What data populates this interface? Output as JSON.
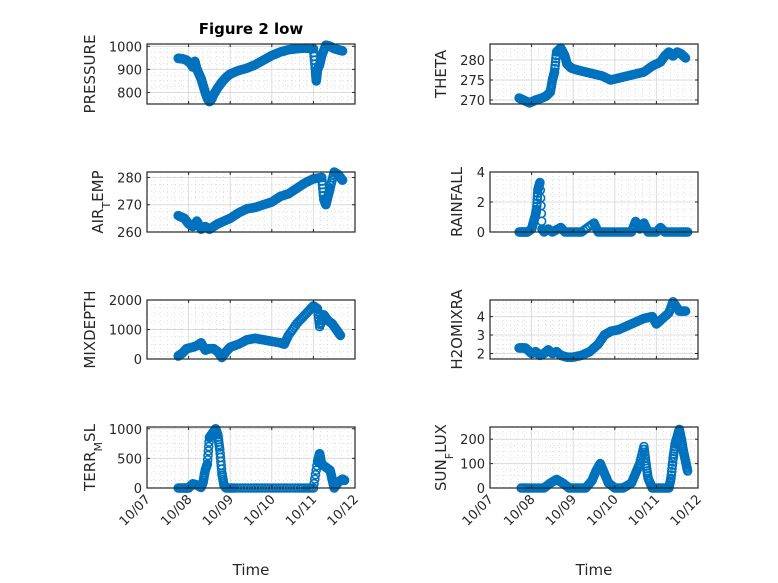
{
  "chart_data": [
    {
      "type": "scatter",
      "title": "Figure 2 low",
      "ylabel": "PRESSURE",
      "xlabel": "",
      "xlim": [
        0,
        5
      ],
      "ylim": [
        750,
        1010
      ],
      "yticks": [
        800,
        900,
        1000
      ],
      "xticks": [
        "10/07",
        "10/08",
        "10/09",
        "10/10",
        "10/11",
        "10/12"
      ],
      "show_xticklabels": false,
      "grid": true,
      "points": [
        [
          0.75,
          948
        ],
        [
          0.85,
          946
        ],
        [
          0.95,
          940
        ],
        [
          1.05,
          925
        ],
        [
          1.1,
          910
        ],
        [
          1.15,
          935
        ],
        [
          1.2,
          900
        ],
        [
          1.25,
          880
        ],
        [
          1.3,
          860
        ],
        [
          1.35,
          830
        ],
        [
          1.4,
          800
        ],
        [
          1.45,
          775
        ],
        [
          1.5,
          760
        ],
        [
          1.55,
          770
        ],
        [
          1.6,
          790
        ],
        [
          1.7,
          820
        ],
        [
          1.8,
          845
        ],
        [
          1.9,
          865
        ],
        [
          2.0,
          880
        ],
        [
          2.2,
          895
        ],
        [
          2.4,
          905
        ],
        [
          2.6,
          920
        ],
        [
          2.8,
          940
        ],
        [
          3.0,
          960
        ],
        [
          3.2,
          975
        ],
        [
          3.4,
          985
        ],
        [
          3.6,
          990
        ],
        [
          3.8,
          992
        ],
        [
          4.0,
          990
        ],
        [
          4.05,
          890
        ],
        [
          4.07,
          850
        ],
        [
          4.1,
          900
        ],
        [
          4.15,
          920
        ],
        [
          4.2,
          960
        ],
        [
          4.3,
          1005
        ],
        [
          4.4,
          1000
        ],
        [
          4.5,
          990
        ],
        [
          4.6,
          985
        ],
        [
          4.7,
          980
        ]
      ]
    },
    {
      "type": "scatter",
      "title": "",
      "ylabel": "THETA",
      "xlim": [
        0,
        5
      ],
      "ylim": [
        269,
        284
      ],
      "yticks": [
        270,
        275,
        280
      ],
      "xticks": [
        "10/07",
        "10/08",
        "10/09",
        "10/10",
        "10/11",
        "10/12"
      ],
      "show_xticklabels": false,
      "grid": true,
      "points": [
        [
          0.7,
          270.5
        ],
        [
          0.8,
          270
        ],
        [
          0.95,
          269.3
        ],
        [
          1.1,
          270
        ],
        [
          1.25,
          270.5
        ],
        [
          1.35,
          271
        ],
        [
          1.45,
          272
        ],
        [
          1.5,
          275
        ],
        [
          1.55,
          277
        ],
        [
          1.6,
          282
        ],
        [
          1.7,
          283
        ],
        [
          1.75,
          282
        ],
        [
          1.8,
          281
        ],
        [
          1.85,
          279
        ],
        [
          1.95,
          278
        ],
        [
          2.1,
          277.5
        ],
        [
          2.3,
          277
        ],
        [
          2.5,
          276.5
        ],
        [
          2.7,
          276
        ],
        [
          2.9,
          275
        ],
        [
          3.1,
          275.5
        ],
        [
          3.3,
          276
        ],
        [
          3.5,
          276.5
        ],
        [
          3.7,
          277
        ],
        [
          3.9,
          278.5
        ],
        [
          4.1,
          279.5
        ],
        [
          4.2,
          281
        ],
        [
          4.3,
          282
        ],
        [
          4.4,
          281
        ],
        [
          4.5,
          282
        ],
        [
          4.6,
          281.5
        ],
        [
          4.7,
          280.5
        ]
      ]
    },
    {
      "type": "scatter",
      "title": "",
      "ylabel": "AIR_TEMP",
      "xlim": [
        0,
        5
      ],
      "ylim": [
        260,
        282
      ],
      "yticks": [
        260,
        270,
        280
      ],
      "xticks": [
        "10/07",
        "10/08",
        "10/09",
        "10/10",
        "10/11",
        "10/12"
      ],
      "show_xticklabels": false,
      "grid": true,
      "points": [
        [
          0.75,
          266
        ],
        [
          0.9,
          265
        ],
        [
          1.0,
          263
        ],
        [
          1.1,
          262
        ],
        [
          1.2,
          264
        ],
        [
          1.3,
          261
        ],
        [
          1.4,
          262
        ],
        [
          1.5,
          261
        ],
        [
          1.6,
          262
        ],
        [
          1.7,
          263
        ],
        [
          1.85,
          264
        ],
        [
          2.0,
          265
        ],
        [
          2.2,
          267
        ],
        [
          2.4,
          268.5
        ],
        [
          2.6,
          269
        ],
        [
          2.8,
          270
        ],
        [
          3.0,
          271
        ],
        [
          3.2,
          273
        ],
        [
          3.4,
          274
        ],
        [
          3.6,
          276
        ],
        [
          3.8,
          278
        ],
        [
          4.0,
          279.5
        ],
        [
          4.2,
          280
        ],
        [
          4.25,
          272
        ],
        [
          4.3,
          270
        ],
        [
          4.35,
          273
        ],
        [
          4.4,
          276
        ],
        [
          4.5,
          282
        ],
        [
          4.6,
          281
        ],
        [
          4.7,
          279
        ]
      ]
    },
    {
      "type": "scatter",
      "title": "",
      "ylabel": "RAINFALL",
      "xlim": [
        0,
        5
      ],
      "ylim": [
        0,
        4
      ],
      "yticks": [
        0,
        2,
        4
      ],
      "xticks": [
        "10/07",
        "10/08",
        "10/09",
        "10/10",
        "10/11",
        "10/12"
      ],
      "show_xticklabels": false,
      "grid": true,
      "points": [
        [
          0.7,
          0
        ],
        [
          0.8,
          0
        ],
        [
          0.9,
          0
        ],
        [
          1.0,
          0.2
        ],
        [
          1.05,
          0.7
        ],
        [
          1.1,
          1.2
        ],
        [
          1.12,
          1.5
        ],
        [
          1.15,
          2.8
        ],
        [
          1.2,
          3.3
        ],
        [
          1.25,
          0.2
        ],
        [
          1.3,
          0
        ],
        [
          1.4,
          0.2
        ],
        [
          1.5,
          0
        ],
        [
          1.7,
          0.3
        ],
        [
          1.8,
          0
        ],
        [
          2.0,
          0
        ],
        [
          2.2,
          0
        ],
        [
          2.5,
          0.6
        ],
        [
          2.6,
          0
        ],
        [
          2.8,
          0
        ],
        [
          3.0,
          0
        ],
        [
          3.2,
          0
        ],
        [
          3.4,
          0
        ],
        [
          3.5,
          0.7
        ],
        [
          3.6,
          0.2
        ],
        [
          3.7,
          0.6
        ],
        [
          3.8,
          0
        ],
        [
          4.0,
          0
        ],
        [
          4.1,
          0.3
        ],
        [
          4.2,
          0
        ],
        [
          4.4,
          0
        ],
        [
          4.6,
          0
        ],
        [
          4.75,
          0
        ]
      ]
    },
    {
      "type": "scatter",
      "title": "",
      "ylabel": "MIXDEPTH",
      "xlim": [
        0,
        5
      ],
      "ylim": [
        0,
        2000
      ],
      "yticks": [
        0,
        1000,
        2000
      ],
      "xticks": [
        "10/07",
        "10/08",
        "10/09",
        "10/10",
        "10/11",
        "10/12"
      ],
      "show_xticklabels": false,
      "grid": true,
      "points": [
        [
          0.75,
          100
        ],
        [
          0.85,
          200
        ],
        [
          0.95,
          350
        ],
        [
          1.1,
          400
        ],
        [
          1.2,
          450
        ],
        [
          1.3,
          550
        ],
        [
          1.4,
          300
        ],
        [
          1.5,
          350
        ],
        [
          1.6,
          350
        ],
        [
          1.7,
          250
        ],
        [
          1.8,
          50
        ],
        [
          1.9,
          250
        ],
        [
          2.0,
          400
        ],
        [
          2.2,
          500
        ],
        [
          2.4,
          650
        ],
        [
          2.6,
          700
        ],
        [
          2.8,
          650
        ],
        [
          3.0,
          600
        ],
        [
          3.2,
          550
        ],
        [
          3.3,
          500
        ],
        [
          3.4,
          800
        ],
        [
          3.6,
          1200
        ],
        [
          3.8,
          1500
        ],
        [
          4.0,
          1800
        ],
        [
          4.1,
          1700
        ],
        [
          4.15,
          1100
        ],
        [
          4.25,
          1500
        ],
        [
          4.35,
          1300
        ],
        [
          4.45,
          1200
        ],
        [
          4.55,
          1000
        ],
        [
          4.65,
          800
        ]
      ]
    },
    {
      "type": "scatter",
      "title": "",
      "ylabel": "H2OMIXRA",
      "xlim": [
        0,
        5
      ],
      "ylim": [
        1.7,
        4.9
      ],
      "yticks": [
        2,
        3,
        4
      ],
      "xticks": [
        "10/07",
        "10/08",
        "10/09",
        "10/10",
        "10/11",
        "10/12"
      ],
      "show_xticklabels": false,
      "grid": true,
      "points": [
        [
          0.7,
          2.3
        ],
        [
          0.85,
          2.3
        ],
        [
          1.0,
          2.0
        ],
        [
          1.1,
          2.1
        ],
        [
          1.2,
          1.9
        ],
        [
          1.3,
          2.0
        ],
        [
          1.4,
          2.2
        ],
        [
          1.5,
          2.0
        ],
        [
          1.6,
          2.1
        ],
        [
          1.7,
          1.9
        ],
        [
          1.85,
          1.8
        ],
        [
          2.0,
          1.8
        ],
        [
          2.2,
          1.9
        ],
        [
          2.4,
          2.1
        ],
        [
          2.6,
          2.5
        ],
        [
          2.75,
          3.0
        ],
        [
          2.9,
          3.2
        ],
        [
          3.1,
          3.3
        ],
        [
          3.3,
          3.5
        ],
        [
          3.5,
          3.7
        ],
        [
          3.7,
          3.9
        ],
        [
          3.9,
          4.0
        ],
        [
          4.0,
          3.6
        ],
        [
          4.1,
          3.8
        ],
        [
          4.3,
          4.2
        ],
        [
          4.4,
          4.8
        ],
        [
          4.55,
          4.3
        ],
        [
          4.7,
          4.3
        ]
      ]
    },
    {
      "type": "scatter",
      "title": "",
      "ylabel": "TERR_MSL",
      "xlabel": "Time",
      "xlim": [
        0,
        5
      ],
      "ylim": [
        0,
        1030
      ],
      "yticks": [
        0,
        500,
        1000
      ],
      "xticks": [
        "10/07",
        "10/08",
        "10/09",
        "10/10",
        "10/11",
        "10/12"
      ],
      "show_xticklabels": true,
      "grid": true,
      "points": [
        [
          0.75,
          0
        ],
        [
          0.9,
          0
        ],
        [
          1.0,
          0
        ],
        [
          1.1,
          70
        ],
        [
          1.2,
          50
        ],
        [
          1.3,
          10
        ],
        [
          1.35,
          100
        ],
        [
          1.4,
          300
        ],
        [
          1.45,
          400
        ],
        [
          1.5,
          850
        ],
        [
          1.55,
          900
        ],
        [
          1.6,
          950
        ],
        [
          1.65,
          1000
        ],
        [
          1.7,
          900
        ],
        [
          1.75,
          650
        ],
        [
          1.8,
          250
        ],
        [
          1.85,
          50
        ],
        [
          1.9,
          0
        ],
        [
          2.1,
          0
        ],
        [
          2.5,
          0
        ],
        [
          2.9,
          0
        ],
        [
          3.3,
          0
        ],
        [
          3.7,
          0
        ],
        [
          4.0,
          0
        ],
        [
          4.1,
          450
        ],
        [
          4.15,
          580
        ],
        [
          4.2,
          400
        ],
        [
          4.3,
          350
        ],
        [
          4.4,
          300
        ],
        [
          4.45,
          150
        ],
        [
          4.5,
          0
        ],
        [
          4.6,
          100
        ],
        [
          4.7,
          150
        ],
        [
          4.75,
          130
        ]
      ]
    },
    {
      "type": "scatter",
      "title": "",
      "ylabel": "SUN_FLUX",
      "xlabel": "Time",
      "xlim": [
        0,
        5
      ],
      "ylim": [
        0,
        250
      ],
      "yticks": [
        0,
        100,
        200
      ],
      "xticks": [
        "10/07",
        "10/08",
        "10/09",
        "10/10",
        "10/11",
        "10/12"
      ],
      "show_xticklabels": true,
      "grid": true,
      "points": [
        [
          0.75,
          0
        ],
        [
          1.0,
          0
        ],
        [
          1.3,
          0
        ],
        [
          1.45,
          20
        ],
        [
          1.6,
          35
        ],
        [
          1.75,
          20
        ],
        [
          1.9,
          0
        ],
        [
          2.1,
          0
        ],
        [
          2.3,
          0
        ],
        [
          2.45,
          30
        ],
        [
          2.55,
          70
        ],
        [
          2.65,
          100
        ],
        [
          2.75,
          60
        ],
        [
          2.85,
          20
        ],
        [
          3.0,
          0
        ],
        [
          3.2,
          0
        ],
        [
          3.4,
          20
        ],
        [
          3.5,
          60
        ],
        [
          3.6,
          100
        ],
        [
          3.7,
          170
        ],
        [
          3.75,
          100
        ],
        [
          3.8,
          40
        ],
        [
          3.9,
          0
        ],
        [
          4.1,
          0
        ],
        [
          4.3,
          0
        ],
        [
          4.35,
          40
        ],
        [
          4.4,
          120
        ],
        [
          4.45,
          180
        ],
        [
          4.5,
          210
        ],
        [
          4.55,
          240
        ],
        [
          4.6,
          200
        ],
        [
          4.65,
          150
        ],
        [
          4.7,
          110
        ],
        [
          4.75,
          70
        ]
      ]
    }
  ],
  "marker_color": "#0072BD"
}
